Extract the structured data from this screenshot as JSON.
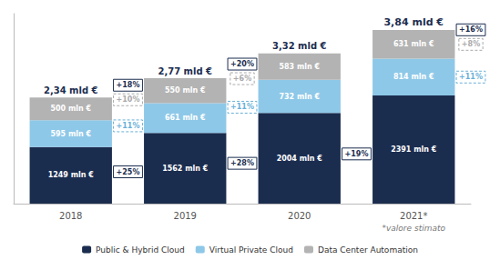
{
  "chart_data": {
    "type": "bar",
    "categories": [
      "2018",
      "2019",
      "2020",
      "2021*"
    ],
    "subtitle": "*valore stimato",
    "stacked": true,
    "data_labels": true,
    "legend": "bottom",
    "grid": false,
    "tick_labels": "x",
    "ylim": [
      0,
      4200
    ],
    "series": [
      {
        "name": "Public & Hybrid Cloud",
        "color": "#1b2d4f",
        "values": [
          1249,
          1562,
          2004,
          2391
        ],
        "value_labels": [
          "1249 mln €",
          "1562 mln €",
          "2004 mln €",
          "2391 mln €"
        ],
        "annotations": [
          {
            "category": "2018",
            "text": "+25%",
            "color": "#1b2d4f",
            "line_style": "solid"
          },
          {
            "category": "2019",
            "text": "+28%",
            "color": "#1b2d4f",
            "line_style": "solid"
          },
          {
            "category": "2020",
            "text": "+19%",
            "color": "#1b2d4f",
            "line_style": "solid"
          }
        ]
      },
      {
        "name": "Virtual Private Cloud",
        "color": "#8ec8e8",
        "values": [
          595,
          661,
          732,
          814
        ],
        "value_labels": [
          "595 mln €",
          "661 mln €",
          "732 mln €",
          "814 mln €"
        ],
        "annotations": [
          {
            "category": "2018",
            "text": "+11%",
            "color": "#6ab0d8",
            "line_style": "dashed"
          },
          {
            "category": "2019",
            "text": "+11%",
            "color": "#6ab0d8",
            "line_style": "dashed"
          },
          {
            "category": "2021*",
            "text": "+11%",
            "color": "#6ab0d8",
            "line_style": "dashed"
          }
        ]
      },
      {
        "name": "Data Center Automation",
        "color": "#b3b3b3",
        "values": [
          500,
          550,
          583,
          631
        ],
        "value_labels": [
          "500 mln €",
          "550 mln €",
          "583 mln €",
          "631 mln €"
        ],
        "annotations": [
          {
            "category": "2018",
            "text": "+10%",
            "color": "#aaaaaa",
            "line_style": "dashed"
          },
          {
            "category": "2019",
            "text": "+6%",
            "color": "#aaaaaa",
            "line_style": "dashed"
          },
          {
            "category": "2021*",
            "text": "+8%",
            "color": "#aaaaaa",
            "line_style": "dashed"
          }
        ]
      }
    ],
    "totals": {
      "values": [
        2344,
        2773,
        3319,
        3836
      ],
      "labels": [
        "2,34 mld €",
        "2,77 mld €",
        "3,32 mld €",
        "3,84 mld €"
      ],
      "annotations": [
        {
          "category": "2018",
          "text": "+18%",
          "color": "#1b2d4f",
          "line_style": "solid"
        },
        {
          "category": "2019",
          "text": "+20%",
          "color": "#1b2d4f",
          "line_style": "solid"
        },
        {
          "category": "2021*",
          "text": "+16%",
          "color": "#1b2d4f",
          "line_style": "solid"
        }
      ]
    }
  }
}
